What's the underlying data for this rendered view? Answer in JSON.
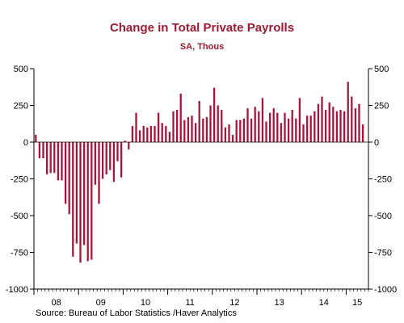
{
  "chart_data": {
    "type": "bar",
    "title": "Change in Total Private Payrolls",
    "subtitle": "SA, Thous",
    "source": "Source:  Bureau of Labor Statistics /Haver Analytics",
    "xlabel": "",
    "ylabel": "",
    "ylim": [
      -1000,
      500
    ],
    "y_ticks": [
      500,
      250,
      0,
      -250,
      -500,
      -750,
      -1000
    ],
    "y_tick_labels": [
      "500",
      "250",
      "0",
      "-250",
      "-500",
      "-750",
      "-1000"
    ],
    "x_year_labels": [
      "08",
      "09",
      "10",
      "11",
      "12",
      "13",
      "14",
      "15"
    ],
    "start_period": "2008-01",
    "grid": false,
    "axes": "left and right",
    "bar_color": "#a5163a",
    "title_color": "#9b1b30",
    "values": [
      50,
      -110,
      -110,
      -220,
      -210,
      -210,
      -260,
      -260,
      -420,
      -490,
      -780,
      -690,
      -820,
      -700,
      -810,
      -800,
      -290,
      -420,
      -250,
      -220,
      -190,
      -270,
      -130,
      -240,
      10,
      -50,
      110,
      200,
      80,
      110,
      100,
      110,
      110,
      200,
      130,
      110,
      70,
      210,
      220,
      330,
      150,
      170,
      180,
      130,
      280,
      160,
      170,
      250,
      370,
      250,
      220,
      100,
      120,
      50,
      150,
      150,
      160,
      230,
      160,
      240,
      210,
      300,
      140,
      200,
      230,
      200,
      130,
      200,
      160,
      220,
      160,
      300,
      120,
      180,
      180,
      210,
      260,
      310,
      220,
      270,
      240,
      210,
      220,
      210,
      410,
      310,
      230,
      260,
      120
    ]
  }
}
